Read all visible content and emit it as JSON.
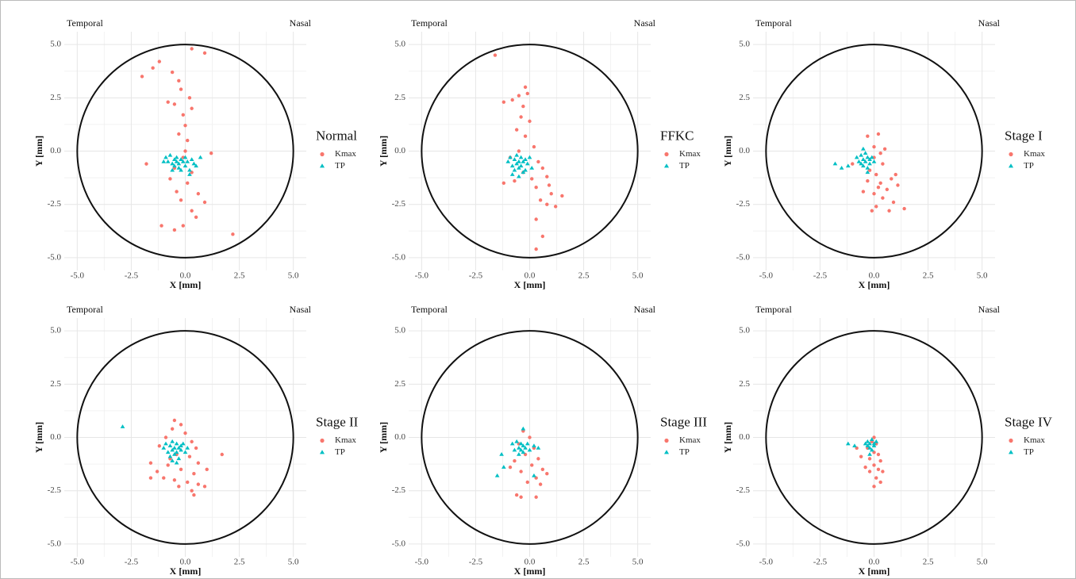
{
  "chart_data": [
    {
      "type": "scatter",
      "title": "Normal",
      "x_label": "X [mm]",
      "y_label": "Y [mm]",
      "annotations": [
        "Temporal",
        "Nasal"
      ],
      "xlim": [
        -5.6,
        5.6
      ],
      "ylim": [
        -5.6,
        5.6
      ],
      "xticks": [
        {
          "value": -5,
          "label": "-5.0"
        },
        -2.5,
        {
          "value": 0,
          "label": "0.0"
        },
        2.5,
        {
          "value": 5,
          "label": "5.0"
        }
      ],
      "yticks": [
        {
          "value": -5,
          "label": "-5.0"
        },
        -2.5,
        {
          "value": 0,
          "label": "0.0"
        },
        2.5,
        {
          "value": 5,
          "label": "5.0"
        }
      ],
      "grid": true,
      "circle_radius": 5,
      "legend": "right",
      "series": [
        {
          "name": "Kmax",
          "color": "#F8766D",
          "marker": "circle",
          "x": [
            0.3,
            0.9,
            -1.2,
            -1.5,
            -2.0,
            -0.6,
            -0.3,
            -0.2,
            -0.8,
            -0.5,
            0.2,
            0.3,
            -0.1,
            0,
            -0.3,
            0.1,
            0,
            -0.1,
            1.2,
            -1.8,
            -0.5,
            0.3,
            -0.7,
            0.1,
            -0.4,
            0.6,
            -0.2,
            0.9,
            0.3,
            0.5,
            -1.1,
            -0.1,
            -0.5,
            2.2
          ],
          "values": [
            4.8,
            4.6,
            4.2,
            3.9,
            3.5,
            3.7,
            3.3,
            2.9,
            2.3,
            2.2,
            2.5,
            2.0,
            1.7,
            1.2,
            0.8,
            0.5,
            0,
            -0.3,
            -0.1,
            -0.6,
            -0.8,
            -1.0,
            -1.3,
            -1.5,
            -1.9,
            -2.0,
            -2.3,
            -2.4,
            -2.8,
            -3.1,
            -3.5,
            -3.5,
            -3.7,
            -3.9
          ]
        },
        {
          "name": "TP",
          "color": "#00BFC4",
          "marker": "triangle",
          "x": [
            -0.9,
            -0.8,
            -0.7,
            -0.6,
            -0.5,
            -0.5,
            -0.4,
            -0.4,
            -0.3,
            -0.3,
            -0.2,
            -0.2,
            -0.1,
            0,
            0,
            0.1,
            0.2,
            0.3,
            0.4,
            0.5,
            0.7,
            -1.0,
            -0.6,
            0.2
          ],
          "values": [
            -0.3,
            -0.5,
            -0.2,
            -0.6,
            -0.4,
            -0.7,
            -0.3,
            -0.5,
            -0.6,
            -0.8,
            -0.4,
            -0.9,
            -0.5,
            -0.3,
            -0.7,
            -0.5,
            -0.9,
            -0.4,
            -0.6,
            -0.7,
            -0.3,
            -0.5,
            -0.9,
            -1.1
          ]
        }
      ]
    },
    {
      "type": "scatter",
      "title": "FFKC",
      "x_label": "X [mm]",
      "y_label": "Y [mm]",
      "annotations": [
        "Temporal",
        "Nasal"
      ],
      "xlim": [
        -5.6,
        5.6
      ],
      "ylim": [
        -5.6,
        5.6
      ],
      "xticks": [
        {
          "value": -5,
          "label": "-5.0"
        },
        -2.5,
        {
          "value": 0,
          "label": "0.0"
        },
        2.5,
        {
          "value": 5,
          "label": "5.0"
        }
      ],
      "yticks": [
        {
          "value": -5,
          "label": "-5.0"
        },
        -2.5,
        {
          "value": 0,
          "label": "0.0"
        },
        2.5,
        {
          "value": 5,
          "label": "5.0"
        }
      ],
      "grid": true,
      "circle_radius": 5,
      "legend": "right",
      "series": [
        {
          "name": "Kmax",
          "color": "#F8766D",
          "marker": "circle",
          "x": [
            -1.6,
            -1.2,
            -0.8,
            -0.5,
            -0.2,
            -0.1,
            -0.3,
            -0.4,
            0,
            -0.6,
            -0.2,
            0.2,
            -0.5,
            -0.9,
            0.4,
            0.6,
            -0.3,
            0.1,
            0.8,
            -1.2,
            -0.7,
            0.3,
            0.9,
            1.0,
            0.5,
            0.8,
            1.5,
            1.2,
            0.3,
            0.6,
            0.3
          ],
          "values": [
            4.5,
            2.3,
            2.4,
            2.6,
            3.0,
            2.7,
            2.1,
            1.6,
            1.4,
            1.0,
            0.7,
            0.2,
            0,
            -0.3,
            -0.5,
            -0.8,
            -1.0,
            -1.3,
            -1.2,
            -1.5,
            -1.4,
            -1.7,
            -1.6,
            -2.0,
            -2.3,
            -2.5,
            -2.1,
            -2.6,
            -3.2,
            -4.0,
            -4.6
          ]
        },
        {
          "name": "TP",
          "color": "#00BFC4",
          "marker": "triangle",
          "x": [
            -1.0,
            -0.9,
            -0.8,
            -0.7,
            -0.7,
            -0.6,
            -0.6,
            -0.5,
            -0.5,
            -0.4,
            -0.4,
            -0.3,
            -0.3,
            -0.2,
            -0.1,
            0,
            0.1,
            -0.8,
            -0.5,
            -0.2
          ],
          "values": [
            -0.5,
            -0.3,
            -0.7,
            -0.4,
            -0.9,
            -0.2,
            -0.6,
            -0.5,
            -0.8,
            -0.3,
            -0.7,
            -0.5,
            -1.0,
            -0.4,
            -0.6,
            -0.3,
            -0.8,
            -1.1,
            -1.2,
            -0.9
          ]
        }
      ]
    },
    {
      "type": "scatter",
      "title": "Stage I",
      "x_label": "X [mm]",
      "y_label": "Y [mm]",
      "annotations": [
        "Temporal",
        "Nasal"
      ],
      "xlim": [
        -5.6,
        5.6
      ],
      "ylim": [
        -5.6,
        5.6
      ],
      "xticks": [
        {
          "value": -5,
          "label": "-5.0"
        },
        -2.5,
        {
          "value": 0,
          "label": "0.0"
        },
        2.5,
        {
          "value": 5,
          "label": "5.0"
        }
      ],
      "yticks": [
        {
          "value": -5,
          "label": "-5.0"
        },
        -2.5,
        {
          "value": 0,
          "label": "0.0"
        },
        2.5,
        {
          "value": 5,
          "label": "5.0"
        }
      ],
      "grid": true,
      "circle_radius": 5,
      "legend": "right",
      "series": [
        {
          "name": "Kmax",
          "color": "#F8766D",
          "marker": "circle",
          "x": [
            0.2,
            -0.3,
            0,
            0.3,
            0,
            0.4,
            -0.2,
            0.1,
            0.8,
            1.0,
            -0.3,
            0.3,
            0.2,
            0.6,
            1.1,
            -0.5,
            0,
            0.4,
            0.9,
            0.1,
            -0.1,
            0.7,
            1.4,
            -1.0,
            0.5
          ],
          "values": [
            0.8,
            0.7,
            0.2,
            -0.1,
            -0.3,
            -0.6,
            -0.9,
            -1.1,
            -1.3,
            -1.1,
            -1.4,
            -1.5,
            -1.7,
            -1.8,
            -1.6,
            -1.9,
            -2.0,
            -2.2,
            -2.4,
            -2.6,
            -2.8,
            -2.8,
            -2.7,
            -0.6,
            0.1
          ]
        },
        {
          "name": "TP",
          "color": "#00BFC4",
          "marker": "triangle",
          "x": [
            -1.8,
            -1.5,
            -1.2,
            -0.8,
            -0.7,
            -0.6,
            -0.6,
            -0.5,
            -0.5,
            -0.4,
            -0.4,
            -0.3,
            -0.3,
            -0.2,
            -0.2,
            -0.1,
            0,
            -0.5,
            -0.3
          ],
          "values": [
            -0.6,
            -0.8,
            -0.7,
            -0.3,
            -0.5,
            -0.2,
            -0.6,
            -0.4,
            -0.7,
            -0.1,
            -0.5,
            -0.3,
            -0.8,
            -0.4,
            -0.6,
            -0.3,
            -0.5,
            0.1,
            -1.0
          ]
        }
      ]
    },
    {
      "type": "scatter",
      "title": "Stage II",
      "x_label": "X [mm]",
      "y_label": "Y [mm]",
      "annotations": [
        "Temporal",
        "Nasal"
      ],
      "xlim": [
        -5.6,
        5.6
      ],
      "ylim": [
        -5.6,
        5.6
      ],
      "xticks": [
        {
          "value": -5,
          "label": "-5.0"
        },
        -2.5,
        {
          "value": 0,
          "label": "0.0"
        },
        2.5,
        {
          "value": 5,
          "label": "5.0"
        }
      ],
      "yticks": [
        {
          "value": -5,
          "label": "-5.0"
        },
        -2.5,
        {
          "value": 0,
          "label": "0.0"
        },
        2.5,
        {
          "value": 5,
          "label": "5.0"
        }
      ],
      "grid": true,
      "circle_radius": 5,
      "legend": "right",
      "series": [
        {
          "name": "Kmax",
          "color": "#F8766D",
          "marker": "circle",
          "x": [
            -0.5,
            -0.2,
            -0.6,
            0,
            -0.9,
            0.3,
            -1.2,
            0.5,
            -0.4,
            0.2,
            1.7,
            -1.6,
            -0.8,
            0.6,
            -1.3,
            -0.2,
            0.4,
            1.0,
            -1.6,
            -1.0,
            -0.5,
            0.1,
            0.6,
            -0.3,
            0.3,
            0.9,
            0.4,
            -0.7
          ],
          "values": [
            0.8,
            0.6,
            0.4,
            0.2,
            0,
            -0.2,
            -0.4,
            -0.5,
            -0.8,
            -0.9,
            -0.8,
            -1.2,
            -1.3,
            -1.2,
            -1.6,
            -1.5,
            -1.7,
            -1.5,
            -1.9,
            -1.9,
            -2.0,
            -2.1,
            -2.2,
            -2.3,
            -2.5,
            -2.3,
            -2.7,
            -1.0
          ]
        },
        {
          "name": "TP",
          "color": "#00BFC4",
          "marker": "triangle",
          "x": [
            -2.9,
            -1.0,
            -0.9,
            -0.8,
            -0.7,
            -0.7,
            -0.6,
            -0.6,
            -0.5,
            -0.5,
            -0.4,
            -0.4,
            -0.3,
            -0.3,
            -0.2,
            -0.2,
            -0.1,
            0,
            0.1,
            -0.6,
            -0.4
          ],
          "values": [
            0.5,
            -0.5,
            -0.3,
            -0.7,
            -0.4,
            -0.9,
            -0.2,
            -0.6,
            -0.5,
            -0.8,
            -0.3,
            -0.7,
            -0.5,
            -1.0,
            -0.4,
            -0.6,
            -0.3,
            -0.7,
            -0.5,
            -1.1,
            -1.2
          ]
        }
      ]
    },
    {
      "type": "scatter",
      "title": "Stage III",
      "x_label": "X [mm]",
      "y_label": "Y [mm]",
      "annotations": [
        "Temporal",
        "Nasal"
      ],
      "xlim": [
        -5.6,
        5.6
      ],
      "ylim": [
        -5.6,
        5.6
      ],
      "xticks": [
        {
          "value": -5,
          "label": "-5.0"
        },
        -2.5,
        {
          "value": 0,
          "label": "0.0"
        },
        2.5,
        {
          "value": 5,
          "label": "5.0"
        }
      ],
      "yticks": [
        {
          "value": -5,
          "label": "-5.0"
        },
        -2.5,
        {
          "value": 0,
          "label": "0.0"
        },
        2.5,
        {
          "value": 5,
          "label": "5.0"
        }
      ],
      "grid": true,
      "circle_radius": 5,
      "legend": "right",
      "series": [
        {
          "name": "Kmax",
          "color": "#F8766D",
          "marker": "circle",
          "x": [
            -0.3,
            0,
            -0.5,
            0.2,
            -0.2,
            0.4,
            -0.7,
            0.1,
            0.6,
            0.8,
            -0.4,
            0.3,
            -0.1,
            0.5,
            -0.6,
            -0.4,
            0.3,
            -0.9
          ],
          "values": [
            0.3,
            0,
            -0.3,
            -0.5,
            -0.8,
            -1.0,
            -1.1,
            -1.3,
            -1.5,
            -1.7,
            -1.6,
            -1.9,
            -2.1,
            -2.2,
            -2.7,
            -2.8,
            -2.8,
            -1.4
          ]
        },
        {
          "name": "TP",
          "color": "#00BFC4",
          "marker": "triangle",
          "x": [
            -1.5,
            -1.2,
            -1.3,
            0.2,
            -0.8,
            -0.7,
            -0.6,
            -0.5,
            -0.5,
            -0.4,
            -0.4,
            -0.3,
            -0.3,
            -0.2,
            -0.1,
            0,
            0.2,
            0.4,
            -0.3
          ],
          "values": [
            -1.8,
            -1.4,
            -0.8,
            -1.8,
            -0.3,
            -0.6,
            -0.2,
            -0.5,
            -0.8,
            -0.3,
            -0.6,
            -0.4,
            -0.7,
            -0.5,
            -0.3,
            -0.6,
            -0.4,
            -0.5,
            0.4
          ]
        }
      ]
    },
    {
      "type": "scatter",
      "title": "Stage IV",
      "x_label": "X [mm]",
      "y_label": "Y [mm]",
      "annotations": [
        "Temporal",
        "Nasal"
      ],
      "xlim": [
        -5.6,
        5.6
      ],
      "ylim": [
        -5.6,
        5.6
      ],
      "xticks": [
        {
          "value": -5,
          "label": "-5.0"
        },
        -2.5,
        {
          "value": 0,
          "label": "0.0"
        },
        2.5,
        {
          "value": 5,
          "label": "5.0"
        }
      ],
      "yticks": [
        {
          "value": -5,
          "label": "-5.0"
        },
        -2.5,
        {
          "value": 0,
          "label": "0.0"
        },
        2.5,
        {
          "value": 5,
          "label": "5.0"
        }
      ],
      "grid": true,
      "circle_radius": 5,
      "legend": "right",
      "series": [
        {
          "name": "Kmax",
          "color": "#F8766D",
          "marker": "circle",
          "x": [
            0,
            -0.1,
            0.1,
            -0.3,
            0,
            0.2,
            -0.2,
            0.3,
            -0.6,
            0,
            -0.4,
            0.2,
            0.4,
            -0.2,
            0.1,
            0.3,
            0,
            -0.8
          ],
          "values": [
            0,
            -0.2,
            -0.3,
            -0.5,
            -0.7,
            -0.8,
            -1.0,
            -1.1,
            -0.9,
            -1.3,
            -1.4,
            -1.5,
            -1.6,
            -1.6,
            -1.9,
            -2.1,
            -2.3,
            -0.5
          ]
        },
        {
          "name": "TP",
          "color": "#00BFC4",
          "marker": "triangle",
          "x": [
            -1.2,
            -0.9,
            -0.3,
            -0.2,
            -0.1,
            -0.3,
            0,
            -0.2,
            -0.1,
            0,
            0.1,
            -0.4,
            -0.2
          ],
          "values": [
            -0.3,
            -0.4,
            -0.2,
            -0.3,
            -0.1,
            -0.4,
            -0.3,
            -0.5,
            -0.6,
            -0.4,
            -0.2,
            -0.3,
            -0.8
          ]
        }
      ]
    }
  ]
}
